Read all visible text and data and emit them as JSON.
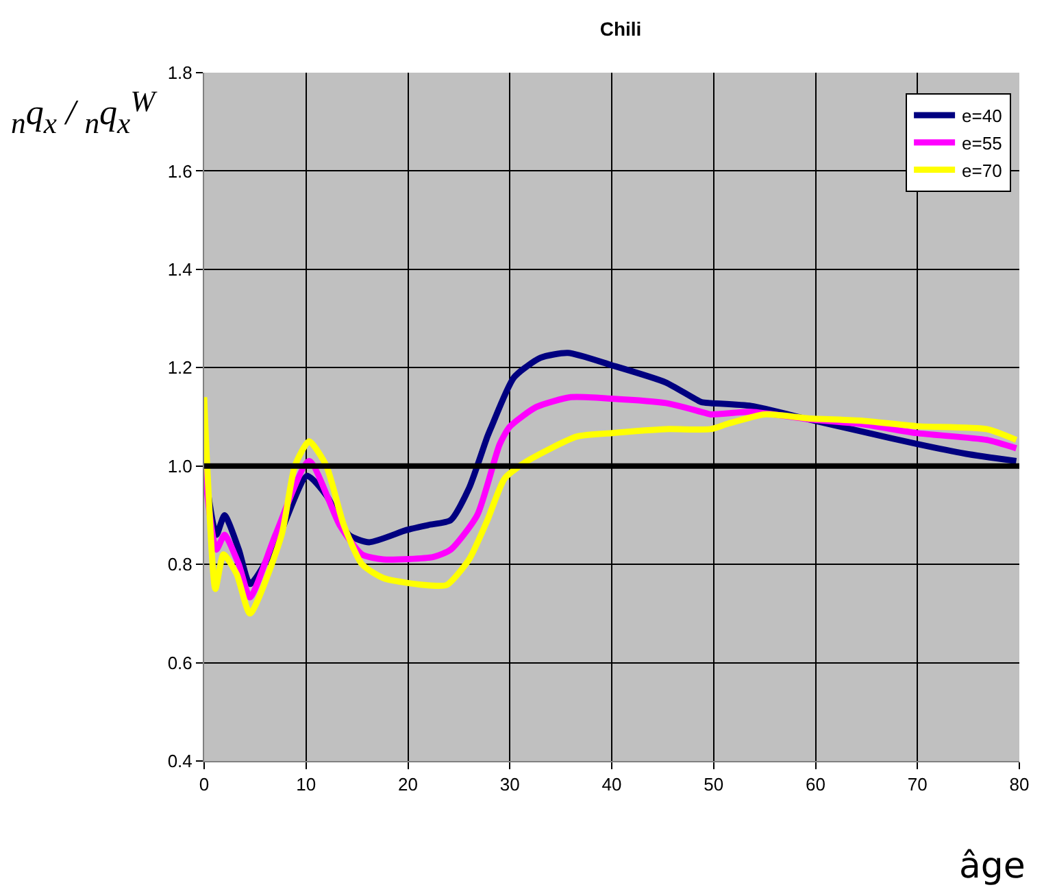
{
  "chart_data": {
    "type": "line",
    "title": "Chili",
    "xlabel": "âge",
    "ylabel": "$_{n}$q$_{x}$ / $_{n}$q$_{x}$$^{W}$",
    "xlim": [
      0,
      80
    ],
    "xticks": [
      0,
      10,
      20,
      30,
      40,
      50,
      60,
      70,
      80
    ],
    "ylim": [
      0.4,
      1.8
    ],
    "yticks": [
      {
        "value": 0.4,
        "label": "0.4"
      },
      {
        "value": 0.6,
        "label": "0.6"
      },
      {
        "value": 0.8,
        "label": "0.8"
      },
      {
        "value": 1,
        "label": "1.0"
      },
      {
        "value": 1.2,
        "label": "1.2"
      },
      {
        "value": 1.4,
        "label": "1.4"
      },
      {
        "value": 1.6,
        "label": "1.6"
      },
      {
        "value": 1.8,
        "label": "1.8"
      }
    ],
    "grid": true,
    "legend": "top right",
    "marker": "none",
    "line_style": "solid",
    "ref_lines": [
      {
        "axis": "y",
        "value": 1,
        "color": "#000000"
      }
    ],
    "series": [
      {
        "name": "e=40",
        "color": "#000080",
        "x": [
          0,
          1.2,
          2,
          3.4,
          4.5,
          7,
          10.1,
          12,
          14.2,
          16.2,
          19.9,
          22,
          24.2,
          26,
          27.8,
          28.2,
          30.4,
          33,
          35.7,
          40,
          45.3,
          48.8,
          49.7,
          53.7,
          59.3,
          64.6,
          69.9,
          74.7,
          79.7
        ],
        "values": [
          1.0,
          0.86,
          0.9,
          0.83,
          0.76,
          0.84,
          0.98,
          0.94,
          0.86,
          0.845,
          0.87,
          0.88,
          0.89,
          0.955,
          1.06,
          1.08,
          1.18,
          1.22,
          1.23,
          1.205,
          1.17,
          1.13,
          1.128,
          1.122,
          1.095,
          1.07,
          1.045,
          1.025,
          1.01
        ]
      },
      {
        "name": "e=55",
        "color": "#ff00ff",
        "x": [
          0,
          1.2,
          2,
          3.4,
          4.5,
          7,
          10.3,
          13.3,
          15.5,
          17.6,
          22.5,
          24.2,
          26.8,
          29,
          30,
          32.6,
          36,
          40,
          45.3,
          48.8,
          49.7,
          53.7,
          59.3,
          64.6,
          69.9,
          76.8,
          79.7
        ],
        "values": [
          1.0,
          0.83,
          0.86,
          0.8,
          0.733,
          0.86,
          1.01,
          0.88,
          0.82,
          0.81,
          0.815,
          0.83,
          0.9,
          1.044,
          1.08,
          1.12,
          1.14,
          1.137,
          1.128,
          1.11,
          1.105,
          1.11,
          1.095,
          1.085,
          1.067,
          1.053,
          1.036
        ]
      },
      {
        "name": "e=70",
        "color": "#ffff00",
        "x": [
          0,
          0.3,
          1.1,
          1.9,
          3.2,
          4.5,
          7.6,
          8.9,
          10.3,
          12,
          13.7,
          15.5,
          17.6,
          21.6,
          23.8,
          26,
          27.8,
          29.5,
          31.7,
          36.6,
          40,
          45.3,
          49.7,
          51.4,
          55,
          59.3,
          64.6,
          69.9,
          76.8,
          79.7
        ],
        "values": [
          1.14,
          1.0,
          0.75,
          0.82,
          0.78,
          0.7,
          0.86,
          1.0,
          1.05,
          1.0,
          0.88,
          0.8,
          0.772,
          0.758,
          0.758,
          0.81,
          0.89,
          0.975,
          1.01,
          1.06,
          1.067,
          1.075,
          1.075,
          1.086,
          1.105,
          1.097,
          1.092,
          1.081,
          1.075,
          1.053
        ]
      }
    ]
  }
}
